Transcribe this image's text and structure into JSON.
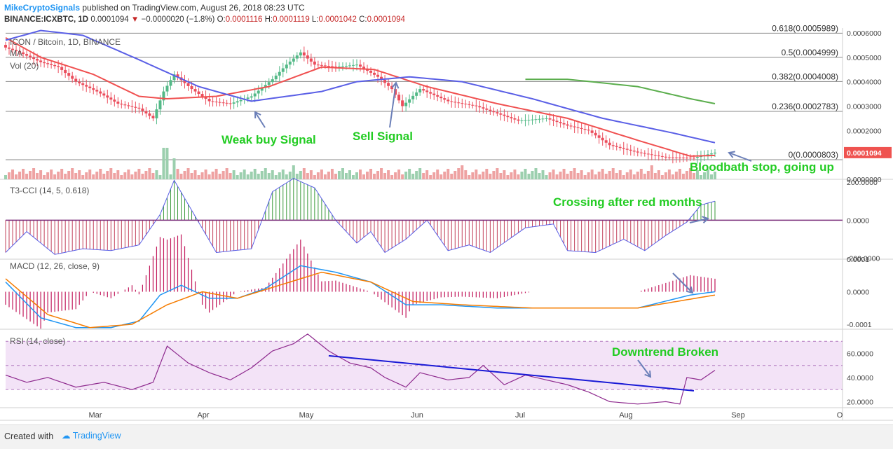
{
  "header": {
    "brand": "MikeCryptoSignals",
    "published": "published on TradingView.com, August 26, 2018 08:23 UTC",
    "symbol": "BINANCE:ICXBTC, 1D",
    "last": "0.0001094",
    "change": "−0.0000020 (−1.8%)",
    "o_label": "O:",
    "o": "0.0001116",
    "h_label": "H:",
    "h": "0.0001119",
    "l_label": "L:",
    "l": "0.0001042",
    "c_label": "C:",
    "c": "0.0001094"
  },
  "footer": {
    "created": "Created with",
    "logo": "TradingView"
  },
  "chart_data": [
    {
      "type": "candlestick",
      "title": "ICON / Bitcoin, 1D, BINANCE",
      "legend": [
        "MA",
        "Vol (20)"
      ],
      "x_ticks": [
        "Mar",
        "Apr",
        "May",
        "Jun",
        "Jul",
        "Aug",
        "Sep",
        "O"
      ],
      "y_ticks": [
        "0.0006000",
        "0.0005000",
        "0.0004000",
        "0.0003000",
        "0.0002000",
        "0.0001000",
        "0.0000000"
      ],
      "ylim": [
        0,
        0.0006
      ],
      "last_price_label": "0.0001094",
      "fib_levels": [
        {
          "label": "0.618(0.0005989)",
          "value": 0.0005989
        },
        {
          "label": "0.5(0.0004999)",
          "value": 0.0004999
        },
        {
          "label": "0.382(0.0004008)",
          "value": 0.0004008
        },
        {
          "label": "0.236(0.0002783)",
          "value": 0.0002783
        },
        {
          "label": "0(0.0000803)",
          "value": 8.03e-05
        }
      ],
      "close_keyframes": [
        [
          0,
          0.00054
        ],
        [
          4,
          0.00052
        ],
        [
          10,
          0.00048
        ],
        [
          15,
          0.00046
        ],
        [
          20,
          0.0004
        ],
        [
          26,
          0.00036
        ],
        [
          32,
          0.00031
        ],
        [
          38,
          0.00029
        ],
        [
          42,
          0.00025
        ],
        [
          45,
          0.00036
        ],
        [
          48,
          0.00043
        ],
        [
          53,
          0.00037
        ],
        [
          58,
          0.00032
        ],
        [
          64,
          0.00031
        ],
        [
          70,
          0.00034
        ],
        [
          76,
          0.00041
        ],
        [
          80,
          0.00047
        ],
        [
          84,
          0.00052
        ],
        [
          88,
          0.00047
        ],
        [
          94,
          0.00046
        ],
        [
          100,
          0.00047
        ],
        [
          106,
          0.00042
        ],
        [
          110,
          0.00037
        ],
        [
          113,
          0.0003
        ],
        [
          118,
          0.00037
        ],
        [
          126,
          0.00032
        ],
        [
          134,
          0.0003
        ],
        [
          140,
          0.00027
        ],
        [
          146,
          0.00024
        ],
        [
          154,
          0.00025
        ],
        [
          160,
          0.00022
        ],
        [
          166,
          0.0002
        ],
        [
          172,
          0.00014
        ],
        [
          180,
          0.00011
        ],
        [
          188,
          9e-05
        ],
        [
          196,
          8.8e-05
        ],
        [
          202,
          0.0001094
        ]
      ],
      "ma_red_keyframes": [
        [
          0,
          0.00058
        ],
        [
          10,
          0.0005
        ],
        [
          25,
          0.00043
        ],
        [
          38,
          0.00034
        ],
        [
          46,
          0.00033
        ],
        [
          60,
          0.00034
        ],
        [
          75,
          0.00038
        ],
        [
          90,
          0.00046
        ],
        [
          105,
          0.00045
        ],
        [
          120,
          0.00038
        ],
        [
          140,
          0.00031
        ],
        [
          160,
          0.00025
        ],
        [
          180,
          0.00016
        ],
        [
          195,
          9.5e-05
        ],
        [
          202,
          9.8e-05
        ]
      ],
      "ma_blue_keyframes": [
        [
          0,
          0.00057
        ],
        [
          10,
          0.00061
        ],
        [
          22,
          0.00059
        ],
        [
          38,
          0.00049
        ],
        [
          55,
          0.00038
        ],
        [
          70,
          0.00032
        ],
        [
          90,
          0.00036
        ],
        [
          100,
          0.0004
        ],
        [
          115,
          0.00042
        ],
        [
          130,
          0.0004
        ],
        [
          150,
          0.00033
        ],
        [
          170,
          0.00025
        ],
        [
          190,
          0.00019
        ],
        [
          202,
          0.00015
        ]
      ],
      "ma_green_keyframes": [
        [
          148,
          0.00041
        ],
        [
          160,
          0.00041
        ],
        [
          180,
          0.00038
        ],
        [
          195,
          0.00033
        ],
        [
          202,
          0.00031
        ]
      ],
      "annotations": [
        {
          "text": "Weak buy Signal",
          "color": "#22cc22"
        },
        {
          "text": "Sell Signal",
          "color": "#22cc22"
        },
        {
          "text": "Bloodbath stop, going up",
          "color": "#22cc22"
        }
      ]
    },
    {
      "type": "histogram",
      "title": "T3-CCI (14, 5, 0.618)",
      "y_ticks": [
        "200.0000",
        "0.0000",
        "-200.0000"
      ],
      "ylim": [
        -200,
        200
      ],
      "keyframes": [
        [
          0,
          -170
        ],
        [
          6,
          -60
        ],
        [
          14,
          -180
        ],
        [
          22,
          -150
        ],
        [
          30,
          -160
        ],
        [
          38,
          -130
        ],
        [
          44,
          30
        ],
        [
          48,
          210
        ],
        [
          54,
          20
        ],
        [
          60,
          -170
        ],
        [
          70,
          -150
        ],
        [
          76,
          150
        ],
        [
          82,
          220
        ],
        [
          88,
          170
        ],
        [
          94,
          0
        ],
        [
          100,
          -120
        ],
        [
          104,
          -60
        ],
        [
          108,
          -170
        ],
        [
          114,
          -100
        ],
        [
          120,
          0
        ],
        [
          126,
          -160
        ],
        [
          132,
          -130
        ],
        [
          138,
          -170
        ],
        [
          148,
          -40
        ],
        [
          156,
          -20
        ],
        [
          160,
          -160
        ],
        [
          168,
          -170
        ],
        [
          176,
          -100
        ],
        [
          182,
          -160
        ],
        [
          188,
          -80
        ],
        [
          194,
          -10
        ],
        [
          198,
          80
        ],
        [
          202,
          100
        ]
      ],
      "annotation": "Crossing after red months"
    },
    {
      "type": "line",
      "title": "MACD (12, 26, close, 9)",
      "y_ticks": [
        "0.0001",
        "0.0000",
        "-0.0001"
      ],
      "ylim": [
        -0.0001,
        0.0001
      ],
      "macd_keyframes": [
        [
          0,
          3e-05
        ],
        [
          10,
          -8e-05
        ],
        [
          20,
          -0.00011
        ],
        [
          30,
          -0.00011
        ],
        [
          38,
          -9e-05
        ],
        [
          44,
          -1e-05
        ],
        [
          50,
          2e-05
        ],
        [
          58,
          -2e-05
        ],
        [
          66,
          -2e-05
        ],
        [
          74,
          1e-05
        ],
        [
          84,
          8e-05
        ],
        [
          94,
          6e-05
        ],
        [
          104,
          3e-05
        ],
        [
          114,
          -4e-05
        ],
        [
          124,
          -4e-05
        ],
        [
          140,
          -5e-05
        ],
        [
          160,
          -5e-05
        ],
        [
          180,
          -5e-05
        ],
        [
          195,
          -1e-05
        ],
        [
          202,
          0.0
        ]
      ],
      "signal_keyframes": [
        [
          0,
          4e-05
        ],
        [
          12,
          -7e-05
        ],
        [
          24,
          -0.00011
        ],
        [
          36,
          -0.0001
        ],
        [
          46,
          -4e-05
        ],
        [
          56,
          0.0
        ],
        [
          66,
          -2e-05
        ],
        [
          78,
          2e-05
        ],
        [
          90,
          6e-05
        ],
        [
          104,
          3e-05
        ],
        [
          116,
          -3e-05
        ],
        [
          130,
          -4e-05
        ],
        [
          150,
          -5e-05
        ],
        [
          180,
          -5e-05
        ],
        [
          202,
          -1e-05
        ]
      ]
    },
    {
      "type": "line",
      "title": "RSI (14, close)",
      "y_ticks": [
        "60.0000",
        "40.0000",
        "20.0000"
      ],
      "ylim": [
        15,
        80
      ],
      "band": [
        30,
        70
      ],
      "keyframes": [
        [
          0,
          42
        ],
        [
          6,
          36
        ],
        [
          12,
          40
        ],
        [
          20,
          32
        ],
        [
          28,
          36
        ],
        [
          36,
          30
        ],
        [
          42,
          36
        ],
        [
          46,
          66
        ],
        [
          52,
          52
        ],
        [
          58,
          44
        ],
        [
          64,
          38
        ],
        [
          70,
          48
        ],
        [
          76,
          62
        ],
        [
          82,
          68
        ],
        [
          86,
          76
        ],
        [
          92,
          62
        ],
        [
          98,
          52
        ],
        [
          104,
          48
        ],
        [
          108,
          40
        ],
        [
          114,
          32
        ],
        [
          118,
          44
        ],
        [
          126,
          38
        ],
        [
          132,
          40
        ],
        [
          136,
          50
        ],
        [
          142,
          34
        ],
        [
          148,
          42
        ],
        [
          154,
          38
        ],
        [
          160,
          34
        ],
        [
          166,
          28
        ],
        [
          172,
          20
        ],
        [
          180,
          18
        ],
        [
          188,
          20
        ],
        [
          192,
          18
        ],
        [
          194,
          40
        ],
        [
          198,
          38
        ],
        [
          202,
          46
        ]
      ],
      "trendline": [
        [
          92,
          58
        ],
        [
          196,
          29
        ]
      ],
      "annotation": "Downtrend Broken"
    }
  ]
}
